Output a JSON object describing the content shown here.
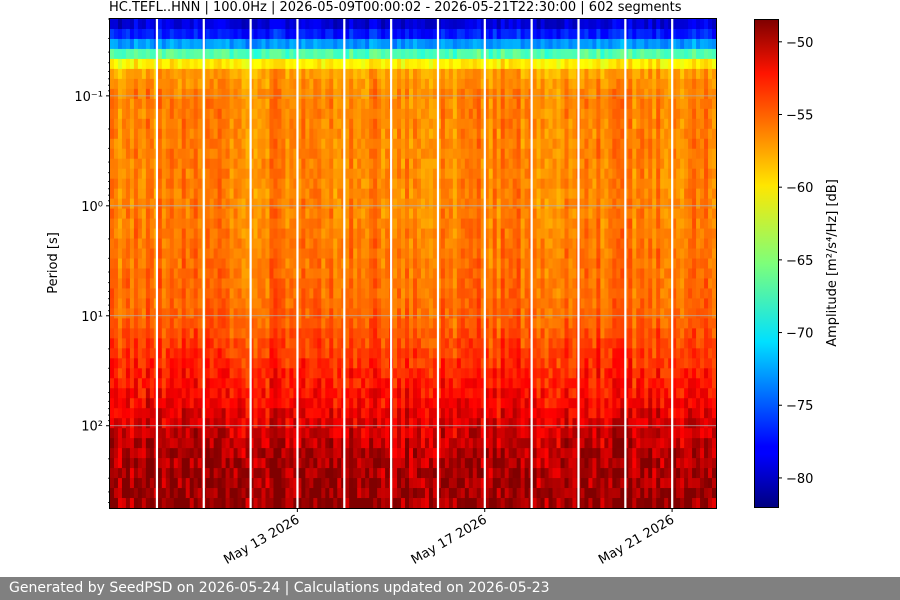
{
  "chart_data": {
    "type": "heatmap",
    "title": "HC.TEFL..HNN | 100.0Hz | 2026-05-09T00:00:02 - 2026-05-21T22:30:00 | 602 segments",
    "xlabel": "",
    "ylabel": "Period [s]",
    "y_scale": "log",
    "y_inverted": true,
    "ylim_period_s": [
      0.02,
      560
    ],
    "x_range": [
      "2026-05-09T00:00:02",
      "2026-05-21T22:30:00"
    ],
    "x_ticks": [
      {
        "date": "2026-05-13",
        "label": "May 13 2026"
      },
      {
        "date": "2026-05-17",
        "label": "May 17 2026"
      },
      {
        "date": "2026-05-21",
        "label": "May 21 2026"
      }
    ],
    "y_ticks": [
      {
        "period_s": 0.1,
        "label": "10⁻¹"
      },
      {
        "period_s": 1,
        "label": "10⁰"
      },
      {
        "period_s": 10,
        "label": "10¹"
      },
      {
        "period_s": 100,
        "label": "10²"
      }
    ],
    "grid": true,
    "gaps": [
      "2026-05-10T00:00",
      "2026-05-11T00:00",
      "2026-05-12T00:00",
      "2026-05-13T00:00",
      "2026-05-14T00:00",
      "2026-05-15T00:00",
      "2026-05-16T00:00",
      "2026-05-17T00:00",
      "2026-05-18T00:00",
      "2026-05-19T00:00",
      "2026-05-20T00:00",
      "2026-05-21T00:00"
    ],
    "amplitude_profile": [
      {
        "period_s": 0.02,
        "db": -80
      },
      {
        "period_s": 0.03,
        "db": -76
      },
      {
        "period_s": 0.04,
        "db": -68
      },
      {
        "period_s": 0.05,
        "db": -61
      },
      {
        "period_s": 0.06,
        "db": -58
      },
      {
        "period_s": 0.1,
        "db": -57
      },
      {
        "period_s": 1,
        "db": -57
      },
      {
        "period_s": 10,
        "db": -56
      },
      {
        "period_s": 50,
        "db": -53
      },
      {
        "period_s": 200,
        "db": -50
      },
      {
        "period_s": 560,
        "db": -49
      }
    ],
    "colorbar": {
      "label": "Amplitude [m²/s⁴/Hz] [dB]",
      "range_db": [
        -82,
        -48.5
      ],
      "ticks": [
        -50,
        -55,
        -60,
        -65,
        -70,
        -75,
        -80
      ],
      "colormap": "jet"
    }
  },
  "footer": {
    "text": "Generated by SeedPSD on 2026-05-24 | Calculations updated on 2026-05-23"
  }
}
